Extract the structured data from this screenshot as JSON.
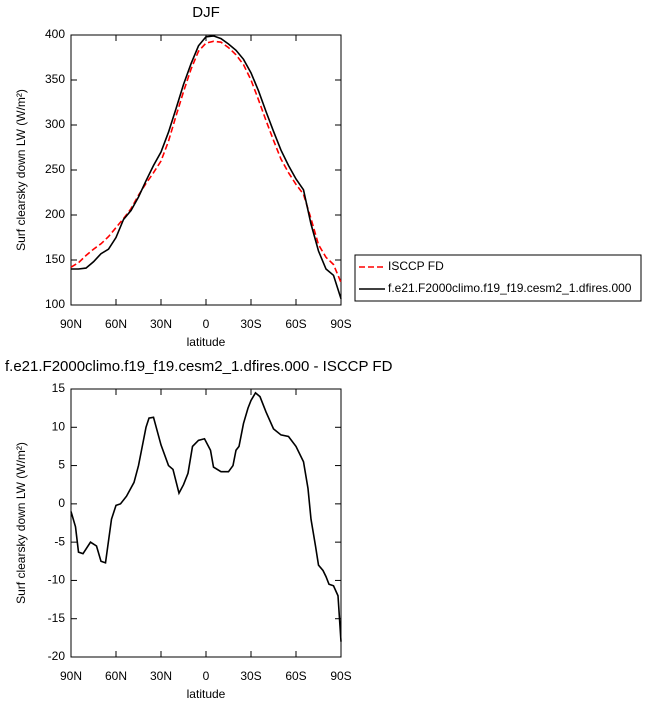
{
  "chart_data": [
    {
      "type": "line",
      "title": "DJF",
      "xlabel": "latitude",
      "ylabel": "Surf clearsky down LW (W/m²)",
      "xlim": [
        90,
        -90
      ],
      "ylim": [
        100,
        400
      ],
      "xticks": [
        {
          "value": 90,
          "label": "90N"
        },
        {
          "value": 60,
          "label": "60N"
        },
        {
          "value": 30,
          "label": "30N"
        },
        0,
        {
          "value": -30,
          "label": "30S"
        },
        {
          "value": -60,
          "label": "60S"
        },
        {
          "value": -90,
          "label": "90S"
        }
      ],
      "yticks": [
        100,
        150,
        200,
        250,
        300,
        350,
        400
      ],
      "legend": "right",
      "x": [
        90,
        85,
        80,
        75,
        70,
        65,
        60,
        55,
        50,
        45,
        40,
        35,
        30,
        25,
        20,
        15,
        10,
        5,
        0,
        -5,
        -10,
        -15,
        -20,
        -25,
        -30,
        -35,
        -40,
        -45,
        -50,
        -55,
        -60,
        -65,
        -70,
        -75,
        -80,
        -85,
        -90
      ],
      "series": [
        {
          "name": "ISCCP FD",
          "color": "#ff0000",
          "dash": true,
          "values": [
            142,
            147,
            155,
            162,
            168,
            176,
            186,
            196,
            207,
            222,
            235,
            247,
            260,
            282,
            310,
            337,
            362,
            382,
            391,
            393,
            392,
            386,
            378,
            367,
            350,
            328,
            305,
            283,
            262,
            247,
            234,
            223,
            196,
            167,
            153,
            145,
            125
          ]
        },
        {
          "name": "f.e21.F2000climo.f19_f19.cesm2_1.dfires.000",
          "color": "#000000",
          "dash": false,
          "values": [
            140,
            140,
            141,
            148,
            157,
            162,
            175,
            195,
            205,
            220,
            238,
            255,
            270,
            292,
            318,
            345,
            368,
            388,
            398,
            399,
            396,
            390,
            383,
            373,
            358,
            338,
            315,
            293,
            272,
            255,
            240,
            228,
            190,
            160,
            140,
            133,
            107
          ]
        }
      ]
    },
    {
      "type": "line",
      "title": "f.e21.F2000climo.f19_f19.cesm2_1.dfires.000 - ISCCP FD",
      "xlabel": "latitude",
      "ylabel": "Surf clearsky down LW (W/m²)",
      "xlim": [
        90,
        -90
      ],
      "ylim": [
        -20,
        15
      ],
      "xticks": [
        {
          "value": 90,
          "label": "90N"
        },
        {
          "value": 60,
          "label": "60N"
        },
        {
          "value": 30,
          "label": "30N"
        },
        0,
        {
          "value": -30,
          "label": "30S"
        },
        {
          "value": -60,
          "label": "60S"
        },
        {
          "value": -90,
          "label": "90S"
        }
      ],
      "yticks": [
        -20,
        -15,
        -10,
        -5,
        0,
        5,
        10,
        15
      ],
      "x": [
        90,
        87,
        85,
        82,
        77,
        73,
        70,
        67,
        63,
        60,
        57,
        53,
        48,
        45,
        42,
        40,
        38,
        35,
        30,
        25,
        22,
        18,
        15,
        12,
        9,
        5,
        1,
        -3,
        -5,
        -10,
        -15,
        -18,
        -20,
        -22,
        -25,
        -28,
        -30,
        -33,
        -36,
        -40,
        -45,
        -50,
        -55,
        -60,
        -65,
        -68,
        -70,
        -73,
        -75,
        -78,
        -80,
        -82,
        -85,
        -88,
        -90
      ],
      "series": [
        {
          "color": "#000000",
          "dash": false,
          "values": [
            -1,
            -3,
            -6.3,
            -6.5,
            -5,
            -5.5,
            -7.5,
            -7.7,
            -2,
            -0.2,
            0,
            1,
            2.8,
            5,
            8,
            10,
            11.2,
            11.3,
            7.7,
            5,
            4.5,
            1.4,
            2.5,
            4,
            7.5,
            8.3,
            8.5,
            7,
            4.8,
            4.2,
            4.2,
            5,
            7,
            7.5,
            10.5,
            12.5,
            13.5,
            14.5,
            14,
            12,
            9.8,
            9,
            8.8,
            7.5,
            5.5,
            2,
            -2,
            -5.5,
            -8,
            -8.7,
            -9.5,
            -10.5,
            -10.7,
            -12,
            -18
          ]
        }
      ]
    }
  ]
}
